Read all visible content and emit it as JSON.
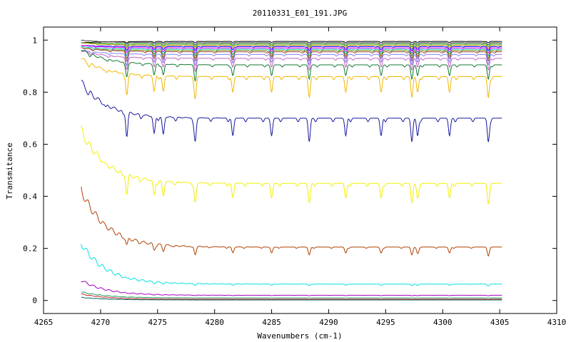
{
  "chart_data": {
    "type": "line",
    "title": "20110331_E01_191.JPG",
    "xlabel": "Wavenumbers (cm-1)",
    "ylabel": "Transmitance",
    "xlim": [
      4265,
      4310
    ],
    "ylim": [
      -0.05,
      1.05
    ],
    "x_ticks": [
      4265,
      4270,
      4275,
      4280,
      4285,
      4290,
      4295,
      4300,
      4305,
      4310
    ],
    "y_ticks": [
      0,
      0.2,
      0.4,
      0.6,
      0.8,
      1
    ],
    "x_range_data": [
      4268.3,
      4305.2
    ],
    "absorption_lines": [
      4272.3,
      4274.7,
      4275.5,
      4278.3,
      4281.6,
      4285.0,
      4288.3,
      4291.5,
      4294.6,
      4297.3,
      4297.8,
      4300.6,
      4304.0
    ],
    "series": [
      {
        "color": "#000000",
        "baseline": 0.995,
        "start": 0.99,
        "depth": 0.005
      },
      {
        "color": "#404040",
        "baseline": 0.99,
        "start": 1.0,
        "depth": 0.008
      },
      {
        "color": "#00a000",
        "baseline": 0.985,
        "start": 0.99,
        "depth": 0.01
      },
      {
        "color": "#c08000",
        "baseline": 0.98,
        "start": 0.99,
        "depth": 0.012
      },
      {
        "color": "#0000ff",
        "baseline": 0.975,
        "start": 0.98,
        "depth": 0.015
      },
      {
        "color": "#ff00ff",
        "baseline": 0.97,
        "start": 0.98,
        "depth": 0.02
      },
      {
        "color": "#00c0c0",
        "baseline": 0.965,
        "start": 0.975,
        "depth": 0.025
      },
      {
        "color": "#808000",
        "baseline": 0.96,
        "start": 0.97,
        "depth": 0.03
      },
      {
        "color": "#a05050",
        "baseline": 0.955,
        "start": 0.97,
        "depth": 0.035
      },
      {
        "color": "#8080ff",
        "baseline": 0.945,
        "start": 0.96,
        "depth": 0.04
      },
      {
        "color": "#c060c0",
        "baseline": 0.93,
        "start": 0.96,
        "depth": 0.045
      },
      {
        "color": "#107830",
        "baseline": 0.905,
        "start": 0.965,
        "depth": 0.055
      },
      {
        "color": "#f0b800",
        "baseline": 0.86,
        "start": 0.93,
        "depth": 0.08
      },
      {
        "color": "#1818a0",
        "baseline": 0.7,
        "start": 0.84,
        "depth": 0.09
      },
      {
        "color": "#f0f000",
        "baseline": 0.45,
        "start": 0.655,
        "depth": 0.075
      },
      {
        "color": "#b04000",
        "baseline": 0.205,
        "start": 0.425,
        "depth": 0.03
      },
      {
        "color": "#00e0e0",
        "baseline": 0.063,
        "start": 0.22,
        "depth": 0.006
      },
      {
        "color": "#a000c0",
        "baseline": 0.02,
        "start": 0.078,
        "depth": 0.002
      },
      {
        "color": "#20a060",
        "baseline": 0.01,
        "start": 0.033,
        "depth": 0.001
      },
      {
        "color": "#c02020",
        "baseline": 0.005,
        "start": 0.025,
        "depth": 0.001
      },
      {
        "color": "#006060",
        "baseline": 0.002,
        "start": 0.012,
        "depth": 0.0
      }
    ],
    "grid": false,
    "legend": "none"
  }
}
